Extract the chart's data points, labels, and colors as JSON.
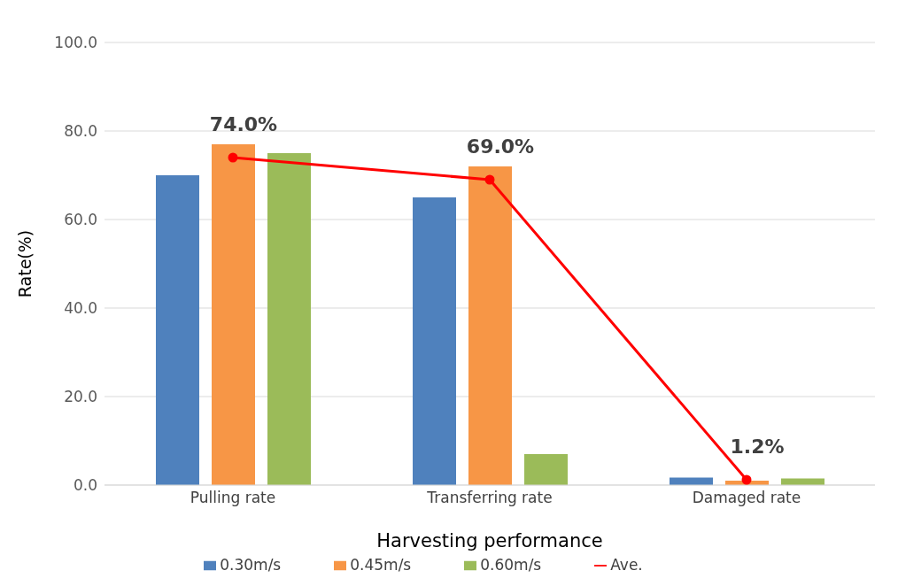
{
  "chart_data": {
    "type": "bar",
    "xlabel": "Harvesting performance",
    "ylabel": "Rate(%)",
    "categories": [
      "Pulling rate",
      "Transferring rate",
      "Damaged rate"
    ],
    "series": [
      {
        "name": "0.30m/s",
        "color": "#4f81bd",
        "values": [
          70,
          65,
          1.7
        ]
      },
      {
        "name": "0.45m/s",
        "color": "#f79646",
        "values": [
          77,
          72,
          1.0
        ]
      },
      {
        "name": "0.60m/s",
        "color": "#9bbb59",
        "values": [
          75,
          7,
          1.5
        ]
      },
      {
        "name": "Ave.",
        "type": "line",
        "color": "#ff0000",
        "values": [
          74.0,
          69.0,
          1.2
        ],
        "value_labels": [
          "74.0%",
          "69.0%",
          "1.2%"
        ],
        "marker": "circle"
      }
    ],
    "ylim": [
      0,
      100
    ],
    "yticks": [
      {
        "value": 0,
        "label": "0.0"
      },
      {
        "value": 20,
        "label": "20.0"
      },
      {
        "value": 40,
        "label": "40.0"
      },
      {
        "value": 60,
        "label": "60.0"
      },
      {
        "value": 80,
        "label": "80.0"
      },
      {
        "value": 100,
        "label": "100.0"
      }
    ],
    "grid": "y",
    "legend": "bottom"
  }
}
